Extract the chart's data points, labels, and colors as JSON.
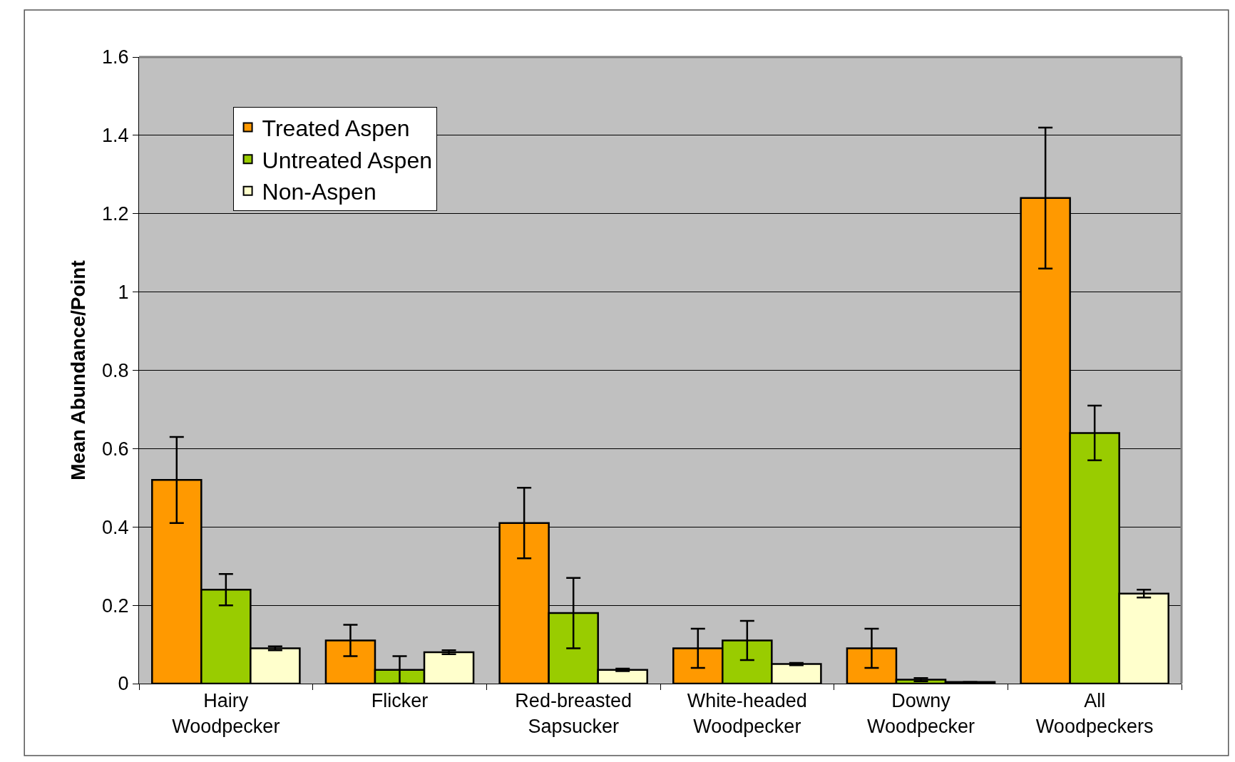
{
  "chart_data": {
    "type": "bar",
    "ylabel": "Mean Abundance/Point",
    "categories": [
      "Hairy\nWoodpecker",
      "Flicker",
      "Red-breasted\nSapsucker",
      "White-headed\nWoodpecker",
      "Downy\nWoodpecker",
      "All\nWoodpeckers"
    ],
    "series": [
      {
        "name": "Treated Aspen",
        "color": "#ff9900",
        "values": [
          0.52,
          0.11,
          0.41,
          0.09,
          0.09,
          1.24
        ],
        "errors": [
          0.11,
          0.04,
          0.09,
          0.05,
          0.05,
          0.18
        ]
      },
      {
        "name": "Untreated Aspen",
        "color": "#99cc00",
        "values": [
          0.24,
          0.035,
          0.18,
          0.11,
          0.01,
          0.64
        ],
        "errors": [
          0.04,
          0.035,
          0.09,
          0.05,
          0.004,
          0.07
        ]
      },
      {
        "name": "Non-Aspen",
        "color": "#ffffcc",
        "values": [
          0.09,
          0.08,
          0.035,
          0.05,
          0.004,
          0.23
        ],
        "errors": [
          0.005,
          0.005,
          0.003,
          0.003,
          null,
          0.01
        ]
      }
    ],
    "ylim": [
      0,
      1.6
    ],
    "yticks": [
      0,
      0.2,
      0.4,
      0.6,
      0.8,
      1,
      1.2,
      1.4,
      1.6
    ],
    "grid": "y",
    "legend": "top left"
  }
}
